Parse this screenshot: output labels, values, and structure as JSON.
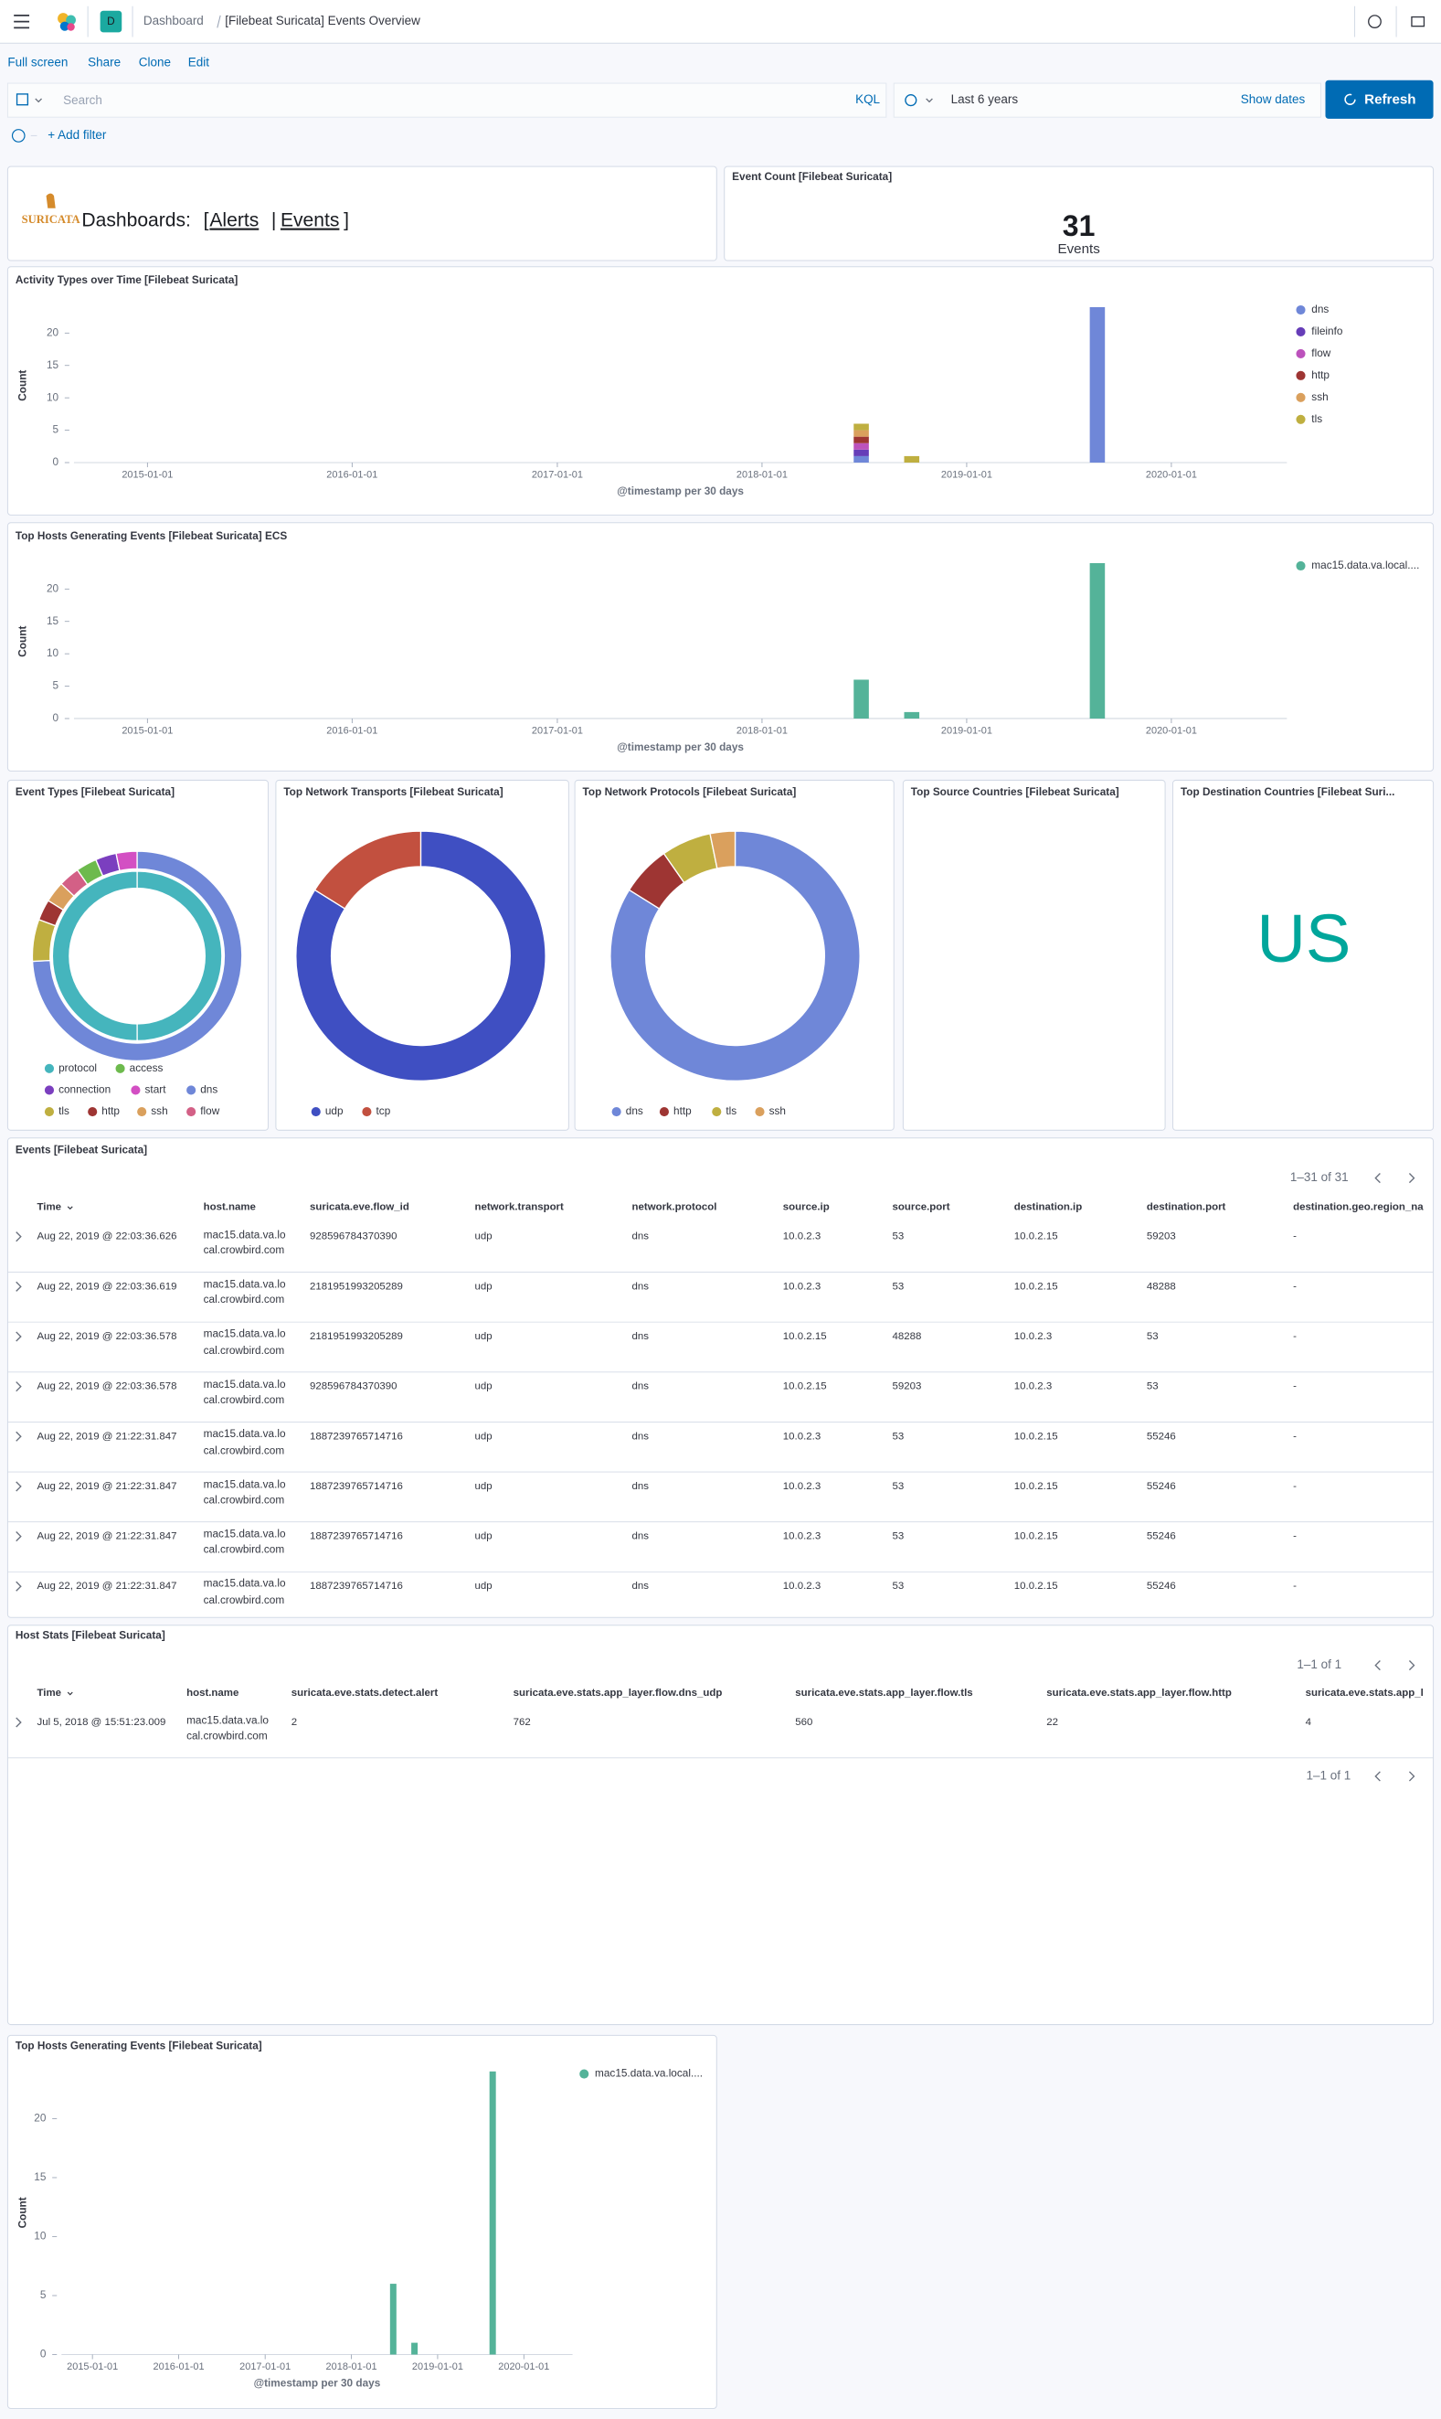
{
  "header": {
    "breadcrumbs": [
      "Dashboard",
      "[Filebeat Suricata] Events Overview"
    ],
    "space_initial": "D"
  },
  "top_nav": [
    "Full screen",
    "Share",
    "Clone",
    "Edit"
  ],
  "query_bar": {
    "placeholder": "Search",
    "language": "KQL",
    "time_range": "Last 6 years",
    "show_dates": "Show dates",
    "refresh": "Refresh"
  },
  "filter_bar": {
    "add_filter": "+ Add filter"
  },
  "markdown_panel": {
    "logo": "SURICATA",
    "text": "Dashboards:",
    "open_bracket": "[",
    "links": [
      "Alerts",
      "Events"
    ],
    "separator": "|",
    "close_bracket": "]"
  },
  "metric_panel": {
    "title": "Event Count [Filebeat Suricata]",
    "value": 31,
    "label": "Events"
  },
  "chart_data": [
    {
      "type": "bar",
      "stacked": true,
      "title": "Activity Types over Time [Filebeat Suricata]",
      "x_label": "@timestamp per 30 days",
      "y_label": "Count",
      "x": [
        "2018-06-27",
        "2018-09-25",
        "2019-08-22"
      ],
      "xlim": [
        "2014-08-23",
        "2020-07-25"
      ],
      "xticks": [
        "2015-01-01",
        "2016-01-01",
        "2017-01-01",
        "2018-01-01",
        "2019-01-01",
        "2020-01-01"
      ],
      "ylim": [
        0,
        25
      ],
      "yticks": [
        0,
        5,
        10,
        15,
        20
      ],
      "series": [
        {
          "name": "dns",
          "color": "#6f87d8",
          "values": [
            1,
            0,
            24
          ]
        },
        {
          "name": "fileinfo",
          "color": "#663db8",
          "values": [
            1,
            0,
            0
          ]
        },
        {
          "name": "flow",
          "color": "#bc52bc",
          "values": [
            1,
            0,
            0
          ]
        },
        {
          "name": "http",
          "color": "#9e3533",
          "values": [
            1,
            0,
            0
          ]
        },
        {
          "name": "ssh",
          "color": "#daa05d",
          "values": [
            1,
            0,
            0
          ]
        },
        {
          "name": "tls",
          "color": "#bfaf40",
          "values": [
            1,
            1,
            0
          ]
        }
      ]
    },
    {
      "type": "bar",
      "stacked": true,
      "title": "Top Hosts Generating Events [Filebeat Suricata] ECS",
      "x_label": "@timestamp per 30 days",
      "y_label": "Count",
      "x": [
        "2018-06-27",
        "2018-09-25",
        "2019-08-22"
      ],
      "xlim": [
        "2014-08-23",
        "2020-07-25"
      ],
      "xticks": [
        "2015-01-01",
        "2016-01-01",
        "2017-01-01",
        "2018-01-01",
        "2019-01-01",
        "2020-01-01"
      ],
      "ylim": [
        0,
        25
      ],
      "yticks": [
        0,
        5,
        10,
        15,
        20
      ],
      "series": [
        {
          "name": "mac15.data.va.local....",
          "color": "#54b399",
          "values": [
            6,
            1,
            24
          ]
        }
      ]
    },
    {
      "type": "donut",
      "title": "Event Types [Filebeat Suricata]",
      "categories": [
        "protocol",
        "access",
        "connection",
        "start",
        "dns",
        "tls",
        "http",
        "ssh",
        "flow"
      ],
      "colors": [
        "#45b5bd",
        "#6dba4d",
        "#7b3fbf",
        "#d34fc3",
        "#6f87d8",
        "#bfaf40",
        "#9e3533",
        "#daa05d",
        "#d36086"
      ],
      "rings": [
        {
          "values": [
            31,
            null,
            null,
            null,
            null,
            null,
            null,
            null,
            null
          ]
        },
        {
          "values": [
            null,
            1,
            1,
            1,
            23,
            2,
            1,
            1,
            1
          ]
        }
      ]
    },
    {
      "type": "donut",
      "title": "Top Network Transports [Filebeat Suricata]",
      "categories": [
        "udp",
        "tcp"
      ],
      "colors": [
        "#3f4fc2",
        "#c2503f"
      ],
      "values": [
        26,
        5
      ]
    },
    {
      "type": "donut",
      "title": "Top Network Protocols [Filebeat Suricata]",
      "categories": [
        "dns",
        "http",
        "tls",
        "ssh"
      ],
      "colors": [
        "#6f87d8",
        "#9e3533",
        "#bfaf40",
        "#daa05d"
      ],
      "values": [
        26,
        2,
        2,
        1
      ]
    },
    {
      "type": "tagcloud",
      "title": "Top Source Countries [Filebeat Suricata]"
    },
    {
      "type": "tagcloud",
      "title": "Top Destination Countries [Filebeat Suri...",
      "categories": [
        "US"
      ],
      "color": "#00a69b"
    },
    {
      "type": "bar",
      "stacked": true,
      "title": "Top Hosts Generating Events [Filebeat Suricata]",
      "x_label": "@timestamp per 30 days",
      "y_label": "Count",
      "x": [
        "2018-06-27",
        "2018-09-25",
        "2019-08-22"
      ],
      "xlim": [
        "2014-08-23",
        "2020-07-25"
      ],
      "xticks": [
        "2015-01-01",
        "2016-01-01",
        "2017-01-01",
        "2018-01-01",
        "2019-01-01",
        "2020-01-01"
      ],
      "ylim": [
        0,
        25
      ],
      "yticks": [
        0,
        5,
        10,
        15,
        20
      ],
      "series": [
        {
          "name": "mac15.data.va.local....",
          "color": "#54b399",
          "values": [
            6,
            1,
            24
          ]
        }
      ]
    }
  ],
  "events_table": {
    "title": "Events [Filebeat Suricata]",
    "pagination": "1–31 of 31",
    "columns": [
      "Time",
      "host.name",
      "suricata.eve.flow_id",
      "network.transport",
      "network.protocol",
      "source.ip",
      "source.port",
      "destination.ip",
      "destination.port",
      "destination.geo.region_na"
    ],
    "rows": [
      [
        "Aug 22, 2019 @ 22:03:36.626",
        "mac15.data.va.local.crowbird.com",
        928596784370390,
        "udp",
        "dns",
        "10.0.2.3",
        53,
        "10.0.2.15",
        59203,
        "-"
      ],
      [
        "Aug 22, 2019 @ 22:03:36.619",
        "mac15.data.va.local.crowbird.com",
        2181951993205289,
        "udp",
        "dns",
        "10.0.2.3",
        53,
        "10.0.2.15",
        48288,
        "-"
      ],
      [
        "Aug 22, 2019 @ 22:03:36.578",
        "mac15.data.va.local.crowbird.com",
        2181951993205289,
        "udp",
        "dns",
        "10.0.2.15",
        48288,
        "10.0.2.3",
        53,
        "-"
      ],
      [
        "Aug 22, 2019 @ 22:03:36.578",
        "mac15.data.va.local.crowbird.com",
        928596784370390,
        "udp",
        "dns",
        "10.0.2.15",
        59203,
        "10.0.2.3",
        53,
        "-"
      ],
      [
        "Aug 22, 2019 @ 21:22:31.847",
        "mac15.data.va.local.crowbird.com",
        1887239765714716,
        "udp",
        "dns",
        "10.0.2.3",
        53,
        "10.0.2.15",
        55246,
        "-"
      ],
      [
        "Aug 22, 2019 @ 21:22:31.847",
        "mac15.data.va.local.crowbird.com",
        1887239765714716,
        "udp",
        "dns",
        "10.0.2.3",
        53,
        "10.0.2.15",
        55246,
        "-"
      ],
      [
        "Aug 22, 2019 @ 21:22:31.847",
        "mac15.data.va.local.crowbird.com",
        1887239765714716,
        "udp",
        "dns",
        "10.0.2.3",
        53,
        "10.0.2.15",
        55246,
        "-"
      ],
      [
        "Aug 22, 2019 @ 21:22:31.847",
        "mac15.data.va.local.crowbird.com",
        1887239765714716,
        "udp",
        "dns",
        "10.0.2.3",
        53,
        "10.0.2.15",
        55246,
        "-"
      ]
    ]
  },
  "host_stats_table": {
    "title": "Host Stats [Filebeat Suricata]",
    "pagination": "1–1 of 1",
    "pagination_bottom": "1–1 of 1",
    "columns": [
      "Time",
      "host.name",
      "suricata.eve.stats.detect.alert",
      "suricata.eve.stats.app_layer.flow.dns_udp",
      "suricata.eve.stats.app_layer.flow.tls",
      "suricata.eve.stats.app_layer.flow.http",
      "suricata.eve.stats.app_l"
    ],
    "rows": [
      [
        "Jul 5, 2018 @ 15:51:23.009",
        "mac15.data.va.local.crowbird.com",
        2,
        762,
        560,
        22,
        4
      ]
    ]
  }
}
